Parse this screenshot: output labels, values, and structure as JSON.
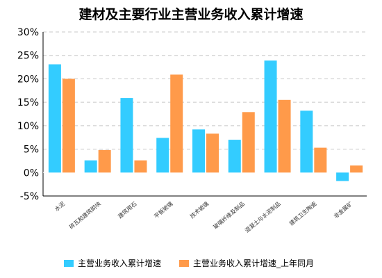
{
  "chart_data": {
    "type": "bar",
    "title": "建材及主要行业主营业务收入累计增速",
    "categories": [
      "水泥",
      "砖瓦和建筑砌块",
      "建筑用石",
      "平板玻璃",
      "技术玻璃",
      "玻璃纤维及制品",
      "混凝土与水泥制品",
      "建筑卫生陶瓷",
      "非金属矿"
    ],
    "series": [
      {
        "name": "主营业务收入累计增速",
        "color": "#33CCFF",
        "values": [
          23.1,
          2.6,
          15.9,
          7.4,
          9.2,
          7.0,
          23.9,
          13.2,
          -1.8
        ]
      },
      {
        "name": "主营业务收入累计增速_上年同月",
        "color": "#FF9A4A",
        "values": [
          20.0,
          4.8,
          2.6,
          20.9,
          8.3,
          12.9,
          15.5,
          5.3,
          1.5
        ]
      }
    ],
    "yticks": [
      "30%",
      "25%",
      "20%",
      "15%",
      "10%",
      "5%",
      "0%",
      "-5%"
    ],
    "ylim": [
      -5,
      30
    ],
    "grid": true,
    "legend_position": "bottom"
  }
}
